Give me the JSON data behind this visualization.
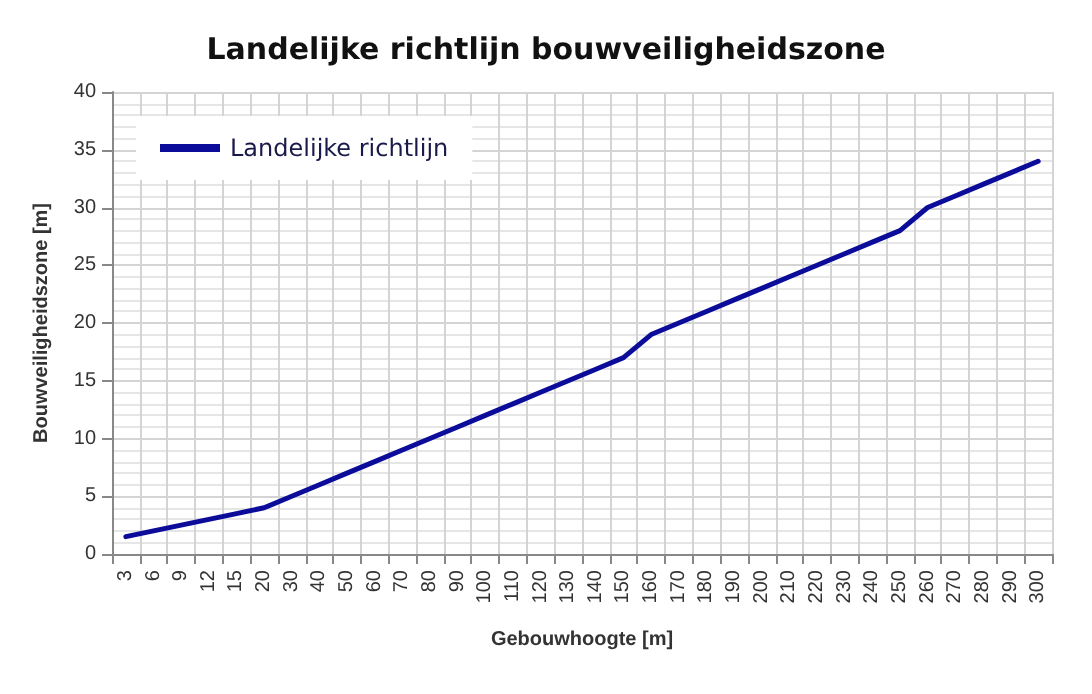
{
  "chart_data": {
    "type": "line",
    "title": "Landelijke richtlijn bouwveiligheidszone",
    "xlabel": "Gebouwhoogte [m]",
    "ylabel": "Bouwveiligheidszone [m]",
    "categories": [
      "3",
      "6",
      "9",
      "12",
      "15",
      "20",
      "30",
      "40",
      "50",
      "60",
      "70",
      "80",
      "90",
      "100",
      "110",
      "120",
      "130",
      "140",
      "150",
      "160",
      "170",
      "180",
      "190",
      "200",
      "210",
      "220",
      "230",
      "240",
      "250",
      "260",
      "270",
      "280",
      "290",
      "300"
    ],
    "series": [
      {
        "name": "Landelijke richtlijn",
        "color": "#0c0c9a",
        "values": [
          1.5,
          2,
          2.5,
          3,
          3.5,
          4,
          5,
          6,
          7,
          8,
          9,
          10,
          11,
          12,
          13,
          14,
          15,
          16,
          17,
          19,
          20,
          21,
          22,
          23,
          24,
          25,
          26,
          27,
          28,
          30,
          31,
          32,
          33,
          34
        ]
      }
    ],
    "ylim": [
      0,
      40
    ],
    "yticks": [
      0,
      5,
      10,
      15,
      20,
      25,
      30,
      35,
      40
    ],
    "grid": true,
    "legend": "top left",
    "marker": "none",
    "line_style": "solid"
  }
}
